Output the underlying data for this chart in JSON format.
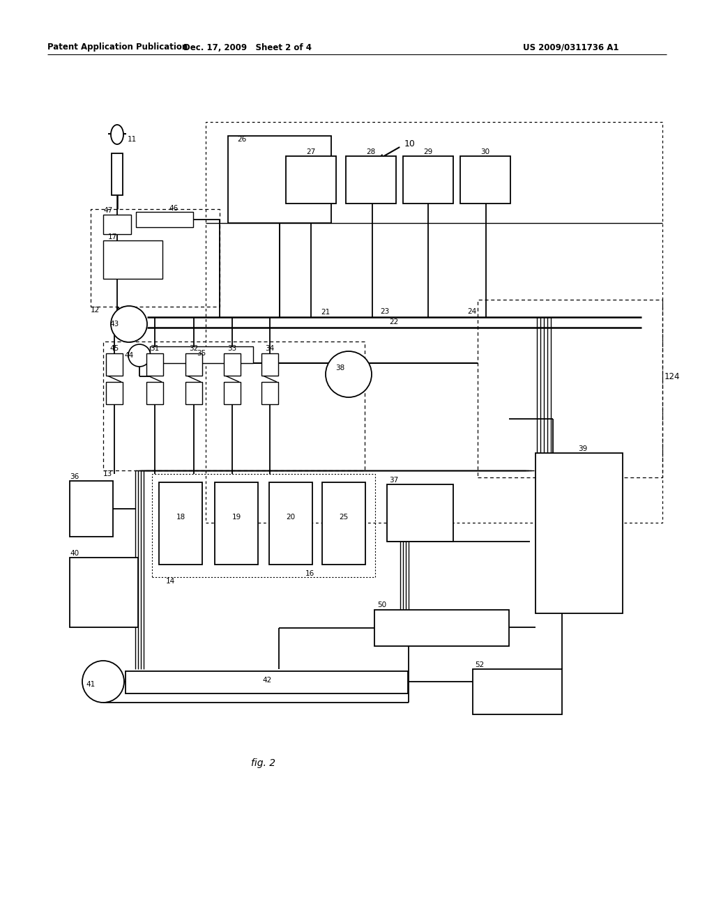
{
  "bg": "#ffffff",
  "hdr_l": "Patent Application Publication",
  "hdr_m": "Dec. 17, 2009   Sheet 2 of 4",
  "hdr_r": "US 2009/0311736 A1",
  "fig_label": "fig. 2",
  "hfs": 8.5,
  "dfs": 7.5
}
